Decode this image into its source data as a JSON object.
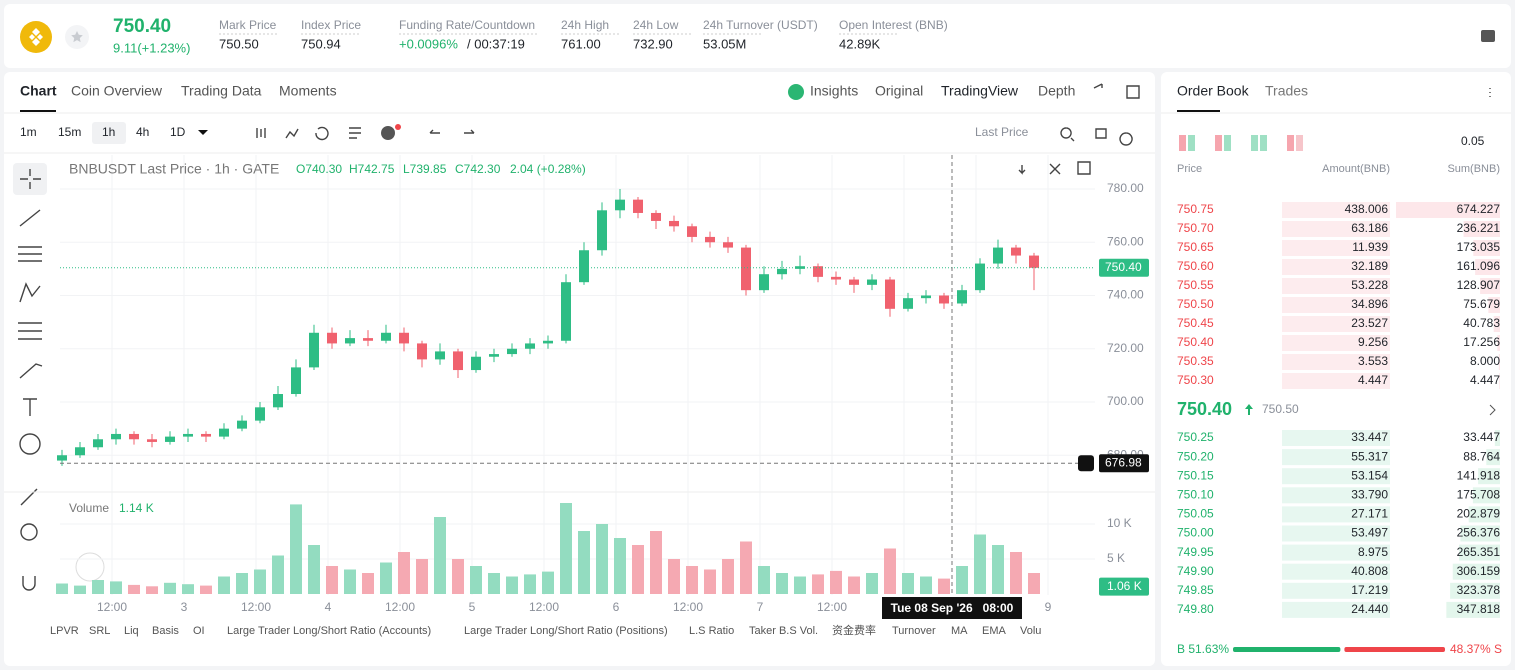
{
  "header": {
    "price": "750.40",
    "change": "9.11(+1.23%)",
    "stats": [
      {
        "label": "Mark Price",
        "value": "750.50"
      },
      {
        "label": "Index Price",
        "value": "750.94"
      },
      {
        "label": "Funding Rate/Countdown",
        "value": "+0.0096%",
        "value2": "/ 00:37:19"
      },
      {
        "label": "24h High",
        "value": "761.00"
      },
      {
        "label": "24h Low",
        "value": "732.90"
      },
      {
        "label": "24h Turnover (USDT)",
        "value": "53.05M"
      },
      {
        "label": "Open Interest (BNB)",
        "value": "42.89K"
      }
    ]
  },
  "tabs": [
    "Chart",
    "Coin Overview",
    "Trading Data",
    "Moments"
  ],
  "views": [
    "Insights",
    "Original",
    "TradingView",
    "Depth"
  ],
  "intervals": [
    "1m",
    "15m",
    "1h",
    "4h",
    "1D"
  ],
  "price_source": "Last Price",
  "chart": {
    "type": "candlestick",
    "symbol": "BNBUSDT Last Price · 1h · GATE",
    "ohlc": [
      "O740.30",
      "H742.75",
      "L739.85",
      "C742.30",
      "2.04 (+0.28%)"
    ],
    "ylim": [
      665,
      790
    ],
    "yticks": [
      {
        "value": 680,
        "label": "680.00"
      },
      {
        "value": 700,
        "label": "700.00"
      },
      {
        "value": 720,
        "label": "720.00"
      },
      {
        "value": 740,
        "label": "740.00"
      },
      {
        "value": 760,
        "label": "760.00"
      },
      {
        "value": 780,
        "label": "780.00"
      }
    ],
    "last": {
      "value": 750.4,
      "label": "750.40"
    },
    "cursor": {
      "value": 676.98,
      "label": "676.98"
    },
    "cursor_time": "Tue 08 Sep '26   08:00",
    "xlabels": [
      "12:00",
      "3",
      "12:00",
      "4",
      "12:00",
      "5",
      "12:00",
      "6",
      "12:00",
      "7",
      "12:00",
      null,
      null,
      "9"
    ],
    "candles": [
      [
        678,
        682,
        676,
        680
      ],
      [
        680,
        685,
        679,
        683
      ],
      [
        683,
        688,
        682,
        686
      ],
      [
        686,
        690,
        684,
        688
      ],
      [
        688,
        689,
        684,
        686
      ],
      [
        686,
        688,
        683,
        685
      ],
      [
        685,
        689,
        684,
        687
      ],
      [
        687,
        690,
        685,
        688
      ],
      [
        688,
        689,
        685,
        687
      ],
      [
        687,
        692,
        686,
        690
      ],
      [
        690,
        695,
        689,
        693
      ],
      [
        693,
        700,
        692,
        698
      ],
      [
        698,
        706,
        697,
        703
      ],
      [
        703,
        716,
        702,
        713
      ],
      [
        713,
        729,
        712,
        726
      ],
      [
        726,
        728,
        720,
        722
      ],
      [
        722,
        727,
        721,
        724
      ],
      [
        724,
        727,
        721,
        723
      ],
      [
        723,
        729,
        722,
        726
      ],
      [
        726,
        728,
        719,
        722
      ],
      [
        722,
        723,
        713,
        716
      ],
      [
        716,
        722,
        714,
        719
      ],
      [
        719,
        720,
        709,
        712
      ],
      [
        712,
        719,
        711,
        717
      ],
      [
        717,
        720,
        715,
        718
      ],
      [
        718,
        722,
        717,
        720
      ],
      [
        720,
        724,
        718,
        722
      ],
      [
        722,
        725,
        720,
        723
      ],
      [
        723,
        748,
        722,
        745
      ],
      [
        745,
        760,
        744,
        757
      ],
      [
        757,
        775,
        755,
        772
      ],
      [
        772,
        780,
        769,
        776
      ],
      [
        776,
        777,
        769,
        771
      ],
      [
        771,
        772,
        765,
        768
      ],
      [
        768,
        770,
        764,
        766
      ],
      [
        766,
        767,
        760,
        762
      ],
      [
        762,
        764,
        758,
        760
      ],
      [
        760,
        762,
        756,
        758
      ],
      [
        758,
        759,
        740,
        742
      ],
      [
        742,
        751,
        741,
        748
      ],
      [
        748,
        753,
        746,
        750
      ],
      [
        750,
        755,
        748,
        751
      ],
      [
        751,
        752,
        745,
        747
      ],
      [
        747,
        749,
        744,
        746
      ],
      [
        746,
        747,
        741,
        744
      ],
      [
        744,
        748,
        742,
        746
      ],
      [
        746,
        747,
        732,
        735
      ],
      [
        735,
        741,
        734,
        739
      ],
      [
        739,
        742,
        737,
        740
      ],
      [
        740,
        741,
        735,
        737
      ],
      [
        737,
        744,
        736,
        742
      ],
      [
        742,
        754,
        741,
        752
      ],
      [
        752,
        761,
        750,
        758
      ],
      [
        758,
        759,
        752,
        755
      ],
      [
        755,
        756,
        742,
        750.4
      ]
    ],
    "volume_title": "Volume",
    "volume_last": "1.14 K",
    "vlim": [
      0,
      13.7
    ],
    "vticks": [
      {
        "value": 5,
        "label": "5 K"
      },
      {
        "value": 10,
        "label": "10 K"
      }
    ],
    "vtag": {
      "value": 1.06,
      "label": "1.06 K"
    },
    "volumes": [
      1.5,
      1.2,
      2,
      1.8,
      1.3,
      1.1,
      1.6,
      1.4,
      1.2,
      2.5,
      3,
      3.5,
      5.5,
      12.8,
      7,
      4,
      3.5,
      3,
      4.5,
      6,
      5,
      11,
      5,
      4,
      3,
      2.5,
      2.8,
      3.2,
      13,
      9,
      10,
      8,
      7,
      9,
      5,
      4,
      3.5,
      5,
      7.5,
      4,
      3,
      2.5,
      2.8,
      3.3,
      2.5,
      3,
      6.5,
      3,
      2.5,
      2.2,
      4,
      8.5,
      7,
      6,
      3
    ]
  },
  "indicators": [
    "LPVR",
    "SRL",
    "Liq",
    "Basis",
    "OI",
    "Large Trader Long/Short Ratio (Accounts)",
    "Large Trader Long/Short Ratio (Positions)",
    "L.S Ratio",
    "Taker B.S Vol.",
    "资金费率",
    "Turnover",
    "MA",
    "EMA",
    "Volu"
  ],
  "orderbook": {
    "tabs": [
      "Order Book",
      "Trades"
    ],
    "step": "0.05",
    "columns": [
      "Price",
      "Amount(BNB)",
      "Sum(BNB)"
    ],
    "asks": [
      [
        "750.75",
        "438.006",
        674.227
      ],
      [
        "750.70",
        "63.186",
        236.221
      ],
      [
        "750.65",
        "11.939",
        173.035
      ],
      [
        "750.60",
        "32.189",
        161.096
      ],
      [
        "750.55",
        "53.228",
        128.907
      ],
      [
        "750.50",
        "34.896",
        75.679
      ],
      [
        "750.45",
        "23.527",
        40.783
      ],
      [
        "750.40",
        "9.256",
        17.256
      ],
      [
        "750.35",
        "3.553",
        8
      ],
      [
        "750.30",
        "4.447",
        4.447
      ]
    ],
    "ask_sum_labels": [
      "674.227",
      "236.221",
      "173.035",
      "161.096",
      "128.907",
      "75.679",
      "40.783",
      "17.256",
      "8.000",
      "4.447"
    ],
    "mid": "750.40",
    "mark": "750.50",
    "bids": [
      [
        "750.25",
        "33.447",
        33.447
      ],
      [
        "750.20",
        "55.317",
        88.764
      ],
      [
        "750.15",
        "53.154",
        141.918
      ],
      [
        "750.10",
        "33.790",
        175.708
      ],
      [
        "750.05",
        "27.171",
        202.879
      ],
      [
        "750.00",
        "53.497",
        256.376
      ],
      [
        "749.95",
        "8.975",
        265.351
      ],
      [
        "749.90",
        "40.808",
        306.159
      ],
      [
        "749.85",
        "17.219",
        323.378
      ],
      [
        "749.80",
        "24.440",
        347.818
      ]
    ],
    "bid_sum_labels": [
      "33.447",
      "88.764",
      "141.918",
      "175.708",
      "202.879",
      "256.376",
      "265.351",
      "306.159",
      "323.378",
      "347.818"
    ],
    "buy": 51.63,
    "sell": 48.37,
    "buy_label": "B 51.63%",
    "sell_label": "48.37% S"
  }
}
